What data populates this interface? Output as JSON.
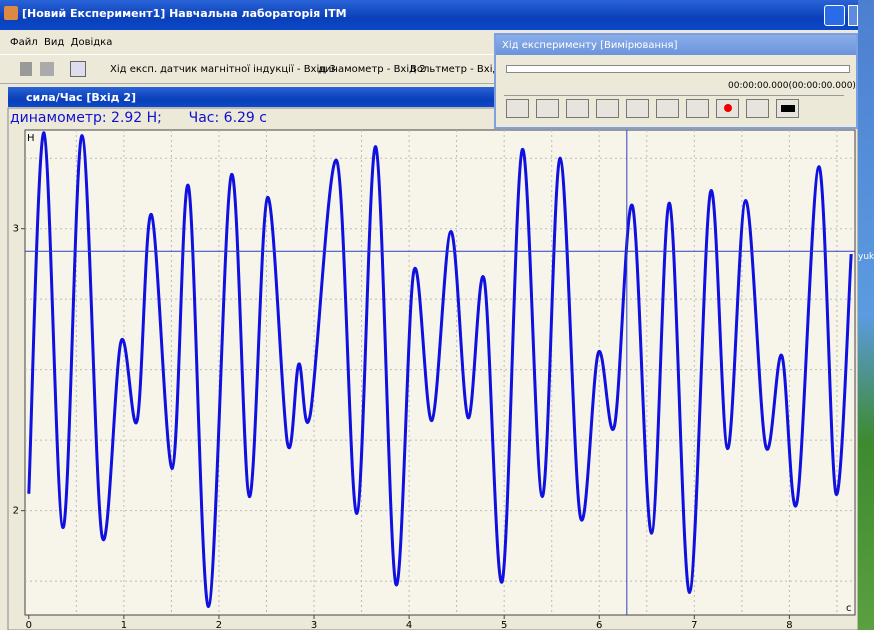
{
  "window": {
    "title": "[Новий Експеримент1]  Навчальна лабораторія ІТМ"
  },
  "menu": [
    "Файл",
    "Вид",
    "Довідка"
  ],
  "toolbar": [
    "Хід експ.",
    "датчик магнітної індукції - Вхід 3",
    "динамометр - Вхід 2",
    "Вольтметр - Вхід"
  ],
  "subwindow": {
    "title": "сила/Час [Вхід 2]"
  },
  "readout": {
    "force": {
      "label": "динамометр:",
      "value": 2.92,
      "unit": "Н;"
    },
    "time": {
      "label": "Час:",
      "value": 6.29,
      "unit": "с"
    }
  },
  "progress": {
    "title": "Хід експерименту [Вимірювання]",
    "time": "00:00:00.000(00:00:00.000)"
  },
  "desktop": {
    "label": "yuk"
  },
  "chart": {
    "type": "line",
    "y_unit": "Н",
    "x_unit": "с",
    "color": "#1010e0",
    "x": [
      0,
      0.16,
      0.36,
      0.56,
      0.77,
      0.97,
      1.14,
      1.29,
      1.51,
      1.68,
      1.89,
      2.13,
      2.32,
      2.51,
      2.72,
      2.84,
      2.96,
      3.24,
      3.45,
      3.65,
      3.86,
      4.05,
      4.24,
      4.44,
      4.62,
      4.79,
      4.98,
      5.19,
      5.4,
      5.59,
      5.8,
      5.99,
      6.16,
      6.35,
      6.55,
      6.74,
      6.95,
      7.17,
      7.35,
      7.54,
      7.75,
      7.92,
      8.08,
      8.31,
      8.49,
      8.65
    ],
    "values": [
      2.06,
      3.34,
      1.94,
      3.33,
      1.91,
      2.6,
      2.32,
      3.05,
      2.15,
      3.15,
      1.66,
      3.19,
      2.05,
      3.11,
      2.24,
      2.52,
      2.34,
      3.24,
      1.99,
      3.29,
      1.74,
      2.85,
      2.32,
      2.99,
      2.33,
      2.82,
      1.75,
      3.28,
      2.05,
      3.25,
      1.98,
      2.56,
      2.3,
      3.08,
      1.92,
      3.09,
      1.71,
      3.13,
      2.22,
      3.1,
      2.23,
      2.55,
      2.03,
      3.22,
      2.06,
      2.91
    ],
    "xlim": [
      -0.04,
      8.69
    ],
    "ylim": [
      1.63,
      3.35
    ],
    "xticks": [
      0,
      1,
      2,
      3,
      4,
      5,
      6,
      7,
      8
    ],
    "yticks": [
      2,
      3
    ],
    "xgrid": [
      0.5,
      1,
      1.5,
      2,
      2.5,
      3,
      3.5,
      4,
      4.5,
      5,
      5.5,
      6,
      6.5,
      7,
      7.5,
      8,
      8.5
    ],
    "ygrid": [
      1.75,
      2,
      2.25,
      2.5,
      2.75,
      3,
      3.25
    ]
  }
}
